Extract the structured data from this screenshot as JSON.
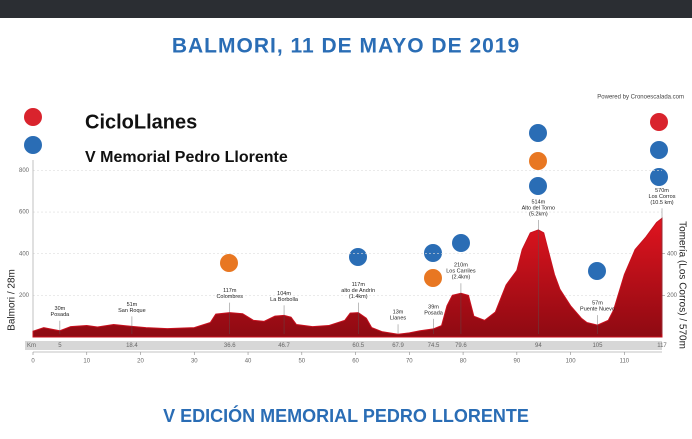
{
  "header": {
    "title": "BALMORI, 11 DE MAYO DE 2019"
  },
  "footer": {
    "title": "V EDICIÓN MEMORIAL PEDRO LLORENTE"
  },
  "chart_data": {
    "type": "area",
    "title": "CicloLlanes",
    "subtitle": "V Memorial Pedro Llorente",
    "credit": "Powered by Cronoescalada.com",
    "y_label": "Balmori / 28m",
    "y2_label": "Tomería (Los Corros) / 570m",
    "km_label": "Km",
    "color": "#c8101e",
    "x": [
      0,
      2,
      4,
      5,
      7,
      10,
      12,
      15,
      18.4,
      21,
      25,
      30,
      33,
      34,
      36.6,
      39,
      41,
      43,
      45,
      46.7,
      48,
      49,
      52,
      55,
      58,
      59,
      60.5,
      62,
      63,
      65,
      67.9,
      70,
      72,
      74.5,
      76,
      77,
      78,
      79.6,
      81,
      82,
      84,
      86,
      88,
      90,
      91,
      92.5,
      94,
      95,
      96,
      97,
      98,
      100,
      102,
      103,
      105,
      107,
      108,
      110,
      112,
      114,
      116,
      117
    ],
    "values": [
      28,
      45,
      35,
      30,
      50,
      55,
      48,
      60,
      51,
      45,
      40,
      45,
      70,
      110,
      117,
      112,
      80,
      75,
      100,
      104,
      95,
      60,
      50,
      55,
      80,
      115,
      117,
      90,
      45,
      25,
      13,
      20,
      30,
      39,
      55,
      150,
      200,
      210,
      200,
      100,
      80,
      120,
      250,
      320,
      420,
      500,
      514,
      500,
      400,
      300,
      230,
      150,
      90,
      70,
      57,
      80,
      130,
      300,
      420,
      480,
      550,
      570
    ],
    "xlim": [
      0,
      117
    ],
    "ylim": [
      0,
      850
    ],
    "xticks": [
      0,
      10,
      20,
      30,
      40,
      50,
      60,
      70,
      80,
      90,
      100,
      110
    ],
    "yticks": [
      200,
      400,
      600,
      800
    ],
    "y2ticks": [
      200,
      400
    ],
    "grid": true,
    "annotations": [
      {
        "km": 5,
        "elevation": "30m",
        "name": "Posada"
      },
      {
        "km": 18.4,
        "elevation": "51m",
        "name": "San Roque"
      },
      {
        "km": 36.6,
        "elevation": "117m",
        "name": "Colombres"
      },
      {
        "km": 46.7,
        "elevation": "104m",
        "name": "La Borbolla"
      },
      {
        "km": 60.5,
        "elevation": "117m",
        "name": "alto de Andrín",
        "note": "(1.4km)"
      },
      {
        "km": 67.9,
        "elevation": "13m",
        "name": "Llanes"
      },
      {
        "km": 74.5,
        "elevation": "39m",
        "name": "Posada"
      },
      {
        "km": 79.6,
        "elevation": "210m",
        "name": "Los Carriles",
        "note": "(2.4km)"
      },
      {
        "km": 94,
        "elevation": "514m",
        "name": "Alto del Torno",
        "note": "(5.2km)"
      },
      {
        "km": 105,
        "elevation": "57m",
        "name": "Puente Nuevo"
      },
      {
        "km": 117,
        "elevation": "570m",
        "name": "Los Corros",
        "note": "(10.5 km)"
      }
    ]
  }
}
